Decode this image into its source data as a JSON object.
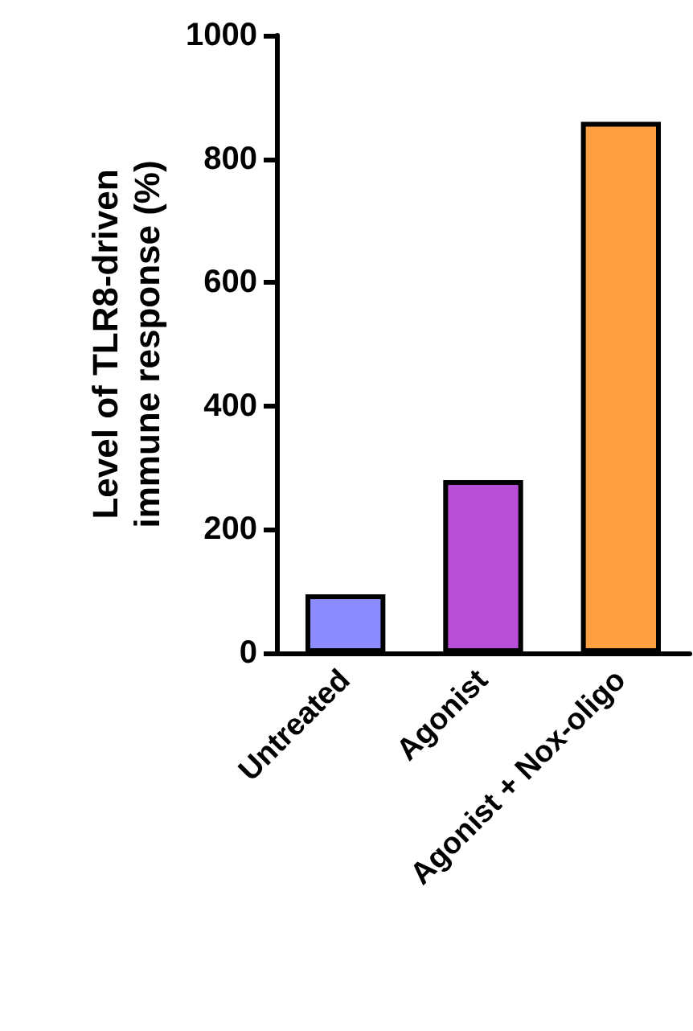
{
  "chart_data": {
    "type": "bar",
    "ylabel": "Level of TLR8-driven\nimmune response (%)",
    "categories": [
      "Untreated",
      "Agonist",
      "Agonist + Nox-oligo"
    ],
    "values": [
      95,
      280,
      860
    ],
    "colors": [
      "#8c8cff",
      "#b84fd6",
      "#ffa040"
    ],
    "ylim": [
      0,
      1000
    ],
    "yticks": [
      0,
      200,
      400,
      600,
      800,
      1000
    ],
    "grid": false
  }
}
